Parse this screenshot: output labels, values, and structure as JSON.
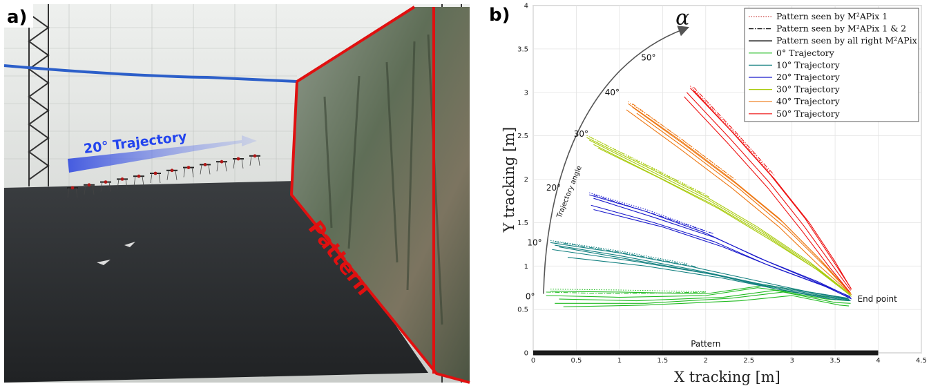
{
  "panel_a": {
    "tag": "a)",
    "trajectory_label": "20° Trajectory",
    "pattern_label": "Pattern"
  },
  "panel_b": {
    "tag": "b)"
  },
  "colors": {
    "traj_0": "#22bb22",
    "traj_10": "#117f7f",
    "traj_20": "#1a1acc",
    "traj_30": "#aacc11",
    "traj_40": "#ee7711",
    "traj_50": "#ee1111",
    "pattern_bar": "#1a1a1a",
    "red_outline": "#e01010",
    "arrow_blue": "#2244ee"
  },
  "chart_data": {
    "type": "line",
    "xlabel": "X tracking [m]",
    "ylabel": "Y tracking [m]",
    "xlim": [
      0,
      4.5
    ],
    "ylim": [
      0,
      4
    ],
    "xticks": [
      "0",
      "0.5",
      "1",
      "1.5",
      "2",
      "2.5",
      "3",
      "3.5",
      "4",
      "4.5"
    ],
    "yticks": [
      "0",
      "0.5",
      "1",
      "1.5",
      "2",
      "2.5",
      "3",
      "3.5",
      "4"
    ],
    "grid": true,
    "legend_position": "top-right",
    "legend": [
      {
        "label": "Pattern seen by M²APix 1",
        "style": "dotted"
      },
      {
        "label": "Pattern seen by M²APix 1 & 2",
        "style": "dashdot"
      },
      {
        "label": "Pattern seen by all right M²APix",
        "style": "solid-dark"
      },
      {
        "label": "0° Trajectory",
        "style": "solid"
      },
      {
        "label": "10° Trajectory",
        "style": "solid"
      },
      {
        "label": "20° Trajectory",
        "style": "solid"
      },
      {
        "label": "30° Trajectory",
        "style": "solid"
      },
      {
        "label": "40° Trajectory",
        "style": "solid"
      },
      {
        "label": "50° Trajectory",
        "style": "solid"
      }
    ],
    "pattern": {
      "label": "Pattern",
      "x": [
        0,
        4
      ],
      "y": 0
    },
    "end_point": {
      "label": "End point",
      "x": 3.68,
      "y": 0.63
    },
    "angle_arc": {
      "symbol": "α",
      "axis_label": "Trajectory angle",
      "center": [
        0.1,
        0.6
      ],
      "ticks": [
        {
          "label": "0°",
          "x": 0.03,
          "y": 0.65
        },
        {
          "label": "10°",
          "x": 0.08,
          "y": 1.27
        },
        {
          "label": "20°",
          "x": 0.3,
          "y": 1.9
        },
        {
          "label": "30°",
          "x": 0.62,
          "y": 2.52
        },
        {
          "label": "40°",
          "x": 0.98,
          "y": 3.0
        },
        {
          "label": "50°",
          "x": 1.4,
          "y": 3.4
        }
      ]
    },
    "series": [
      {
        "name": "0° Trajectory",
        "color_key": "traj_0",
        "runs": [
          [
            [
              0.2,
              0.71
            ],
            [
              1.0,
              0.7
            ],
            [
              2.0,
              0.68
            ],
            [
              2.7,
              0.78
            ],
            [
              3.2,
              0.7
            ],
            [
              3.62,
              0.63
            ]
          ],
          [
            [
              0.15,
              0.66
            ],
            [
              1.0,
              0.64
            ],
            [
              2.0,
              0.66
            ],
            [
              2.6,
              0.75
            ],
            [
              3.3,
              0.66
            ],
            [
              3.64,
              0.62
            ]
          ],
          [
            [
              0.3,
              0.62
            ],
            [
              1.2,
              0.6
            ],
            [
              2.2,
              0.64
            ],
            [
              2.8,
              0.72
            ],
            [
              3.4,
              0.62
            ],
            [
              3.66,
              0.6
            ]
          ],
          [
            [
              0.25,
              0.57
            ],
            [
              1.3,
              0.57
            ],
            [
              2.3,
              0.63
            ],
            [
              2.9,
              0.7
            ],
            [
              3.5,
              0.58
            ],
            [
              3.68,
              0.57
            ]
          ],
          [
            [
              0.35,
              0.53
            ],
            [
              1.3,
              0.55
            ],
            [
              2.4,
              0.6
            ],
            [
              3.0,
              0.66
            ],
            [
              3.55,
              0.55
            ],
            [
              3.66,
              0.54
            ]
          ]
        ]
      },
      {
        "name": "10° Trajectory",
        "color_key": "traj_10",
        "runs": [
          [
            [
              0.2,
              1.27
            ],
            [
              1.0,
              1.15
            ],
            [
              1.8,
              1.0
            ],
            [
              2.5,
              0.85
            ],
            [
              3.2,
              0.7
            ],
            [
              3.65,
              0.63
            ]
          ],
          [
            [
              0.25,
              1.24
            ],
            [
              1.0,
              1.12
            ],
            [
              1.9,
              0.95
            ],
            [
              2.6,
              0.8
            ],
            [
              3.3,
              0.68
            ],
            [
              3.66,
              0.62
            ]
          ],
          [
            [
              0.3,
              1.22
            ],
            [
              1.1,
              1.08
            ],
            [
              2.0,
              0.92
            ],
            [
              2.7,
              0.77
            ],
            [
              3.35,
              0.66
            ],
            [
              3.67,
              0.61
            ]
          ],
          [
            [
              0.22,
              1.19
            ],
            [
              1.2,
              1.05
            ],
            [
              2.1,
              0.9
            ],
            [
              2.8,
              0.74
            ],
            [
              3.4,
              0.64
            ],
            [
              3.68,
              0.6
            ]
          ],
          [
            [
              0.4,
              1.1
            ],
            [
              1.3,
              1.0
            ],
            [
              2.2,
              0.86
            ],
            [
              2.9,
              0.72
            ],
            [
              3.45,
              0.62
            ],
            [
              3.67,
              0.6
            ]
          ]
        ]
      },
      {
        "name": "20° Trajectory",
        "color_key": "traj_20",
        "runs": [
          [
            [
              0.65,
              1.82
            ],
            [
              1.3,
              1.63
            ],
            [
              2.0,
              1.38
            ],
            [
              2.6,
              1.1
            ],
            [
              3.2,
              0.85
            ],
            [
              3.67,
              0.65
            ]
          ],
          [
            [
              0.7,
              1.78
            ],
            [
              1.4,
              1.56
            ],
            [
              2.1,
              1.33
            ],
            [
              2.7,
              1.06
            ],
            [
              3.3,
              0.82
            ],
            [
              3.68,
              0.64
            ]
          ],
          [
            [
              0.67,
              1.7
            ],
            [
              1.4,
              1.5
            ],
            [
              2.1,
              1.28
            ],
            [
              2.7,
              1.02
            ],
            [
              3.35,
              0.78
            ],
            [
              3.68,
              0.63
            ]
          ],
          [
            [
              0.7,
              1.65
            ],
            [
              1.5,
              1.45
            ],
            [
              2.2,
              1.22
            ],
            [
              2.8,
              0.98
            ],
            [
              3.4,
              0.76
            ],
            [
              3.69,
              0.62
            ]
          ]
        ]
      },
      {
        "name": "30° Trajectory",
        "color_key": "traj_30",
        "runs": [
          [
            [
              0.62,
              2.48
            ],
            [
              1.3,
              2.15
            ],
            [
              2.0,
              1.8
            ],
            [
              2.6,
              1.45
            ],
            [
              3.2,
              1.05
            ],
            [
              3.67,
              0.68
            ]
          ],
          [
            [
              0.65,
              2.45
            ],
            [
              1.35,
              2.1
            ],
            [
              2.05,
              1.75
            ],
            [
              2.65,
              1.4
            ],
            [
              3.25,
              1.0
            ],
            [
              3.68,
              0.67
            ]
          ],
          [
            [
              0.7,
              2.4
            ],
            [
              1.4,
              2.05
            ],
            [
              2.1,
              1.7
            ],
            [
              2.7,
              1.35
            ],
            [
              3.3,
              0.95
            ],
            [
              3.68,
              0.66
            ]
          ],
          [
            [
              0.75,
              2.36
            ],
            [
              1.45,
              2.02
            ],
            [
              2.15,
              1.66
            ],
            [
              2.75,
              1.3
            ],
            [
              3.35,
              0.92
            ],
            [
              3.69,
              0.65
            ]
          ]
        ]
      },
      {
        "name": "40° Trajectory",
        "color_key": "traj_40",
        "runs": [
          [
            [
              1.1,
              2.87
            ],
            [
              1.7,
              2.45
            ],
            [
              2.3,
              2.0
            ],
            [
              2.85,
              1.55
            ],
            [
              3.3,
              1.1
            ],
            [
              3.67,
              0.7
            ]
          ],
          [
            [
              1.15,
              2.83
            ],
            [
              1.75,
              2.4
            ],
            [
              2.35,
              1.95
            ],
            [
              2.9,
              1.5
            ],
            [
              3.35,
              1.05
            ],
            [
              3.68,
              0.69
            ]
          ],
          [
            [
              1.08,
              2.8
            ],
            [
              1.7,
              2.35
            ],
            [
              2.3,
              1.9
            ],
            [
              2.85,
              1.45
            ],
            [
              3.32,
              1.0
            ],
            [
              3.68,
              0.68
            ]
          ],
          [
            [
              1.2,
              2.76
            ],
            [
              1.8,
              2.33
            ],
            [
              2.4,
              1.88
            ],
            [
              2.95,
              1.42
            ],
            [
              3.4,
              0.98
            ],
            [
              3.69,
              0.67
            ]
          ]
        ]
      },
      {
        "name": "50° Trajectory",
        "color_key": "traj_50",
        "runs": [
          [
            [
              1.82,
              3.05
            ],
            [
              2.3,
              2.55
            ],
            [
              2.75,
              2.05
            ],
            [
              3.15,
              1.55
            ],
            [
              3.45,
              1.1
            ],
            [
              3.68,
              0.75
            ]
          ],
          [
            [
              1.86,
              3.02
            ],
            [
              2.35,
              2.5
            ],
            [
              2.8,
              2.0
            ],
            [
              3.2,
              1.5
            ],
            [
              3.5,
              1.05
            ],
            [
              3.69,
              0.73
            ]
          ],
          [
            [
              1.78,
              3.0
            ],
            [
              2.28,
              2.47
            ],
            [
              2.74,
              1.96
            ],
            [
              3.14,
              1.46
            ],
            [
              3.46,
              1.02
            ],
            [
              3.68,
              0.72
            ]
          ],
          [
            [
              1.75,
              2.95
            ],
            [
              2.25,
              2.42
            ],
            [
              2.72,
              1.9
            ],
            [
              3.12,
              1.4
            ],
            [
              3.44,
              0.98
            ],
            [
              3.67,
              0.7
            ]
          ]
        ]
      }
    ]
  }
}
